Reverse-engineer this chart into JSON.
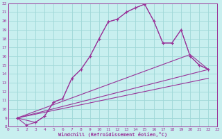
{
  "xlabel": "Windchill (Refroidissement éolien,°C)",
  "bg_color": "#c8efef",
  "grid_color": "#a0d8d8",
  "line_color": "#993399",
  "xlim": [
    0,
    23
  ],
  "ylim": [
    8,
    22
  ],
  "xticks": [
    0,
    1,
    2,
    3,
    4,
    5,
    6,
    7,
    8,
    9,
    10,
    11,
    12,
    13,
    14,
    15,
    16,
    17,
    18,
    19,
    20,
    21,
    22,
    23
  ],
  "yticks": [
    8,
    9,
    10,
    11,
    12,
    13,
    14,
    15,
    16,
    17,
    18,
    19,
    20,
    21,
    22
  ],
  "line1_x": [
    1,
    2,
    3,
    4,
    5,
    6,
    7,
    8,
    9,
    10,
    11,
    12,
    13,
    14,
    15,
    16,
    17,
    18,
    19,
    20,
    21,
    22
  ],
  "line1_y": [
    9.0,
    8.2,
    8.5,
    9.2,
    10.8,
    11.2,
    13.5,
    14.5,
    16.0,
    18.0,
    19.9,
    20.2,
    21.0,
    21.5,
    21.9,
    20.0,
    17.5,
    17.5,
    19.0,
    16.0,
    15.0,
    14.5
  ],
  "line2_x": [
    1,
    3,
    4,
    5,
    6,
    7,
    8,
    9,
    10,
    11,
    12,
    13,
    14,
    15,
    16,
    17,
    18,
    19,
    20,
    21,
    22
  ],
  "line2_y": [
    9.0,
    8.5,
    9.2,
    10.8,
    11.2,
    13.5,
    14.5,
    16.0,
    18.0,
    19.9,
    20.2,
    21.0,
    21.5,
    21.9,
    20.0,
    17.5,
    17.5,
    19.0,
    16.0,
    15.0,
    14.5
  ],
  "line3_x": [
    1,
    20,
    22
  ],
  "line3_y": [
    9.0,
    16.2,
    14.5
  ],
  "line4_x": [
    1,
    22
  ],
  "line4_y": [
    9.0,
    14.5
  ],
  "line5_x": [
    1,
    22
  ],
  "line5_y": [
    9.0,
    13.5
  ]
}
